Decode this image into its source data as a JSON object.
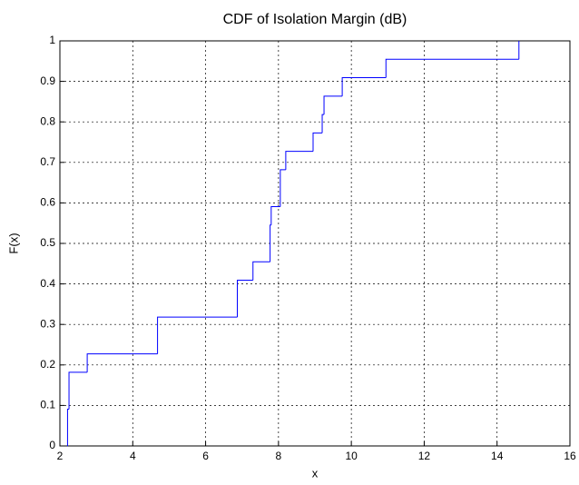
{
  "chart_data": {
    "type": "stairs",
    "title": "CDF of Isolation Margin (dB)",
    "x_label": "x",
    "y_label": "F(x)",
    "x": [
      2.2,
      2.21,
      2.25,
      2.75,
      4.68,
      6.87,
      7.3,
      7.77,
      7.8,
      8.05,
      8.2,
      8.95,
      9.2,
      9.25,
      9.75,
      10.95,
      14.6
    ],
    "values": [
      0,
      0.0909,
      0.1818,
      0.2273,
      0.3182,
      0.4091,
      0.4545,
      0.5455,
      0.5909,
      0.6818,
      0.7273,
      0.7727,
      0.8182,
      0.8636,
      0.9091,
      0.9545,
      1
    ],
    "color": "#0000ff",
    "xlim": [
      2,
      16
    ],
    "xticks": [
      2,
      4,
      6,
      8,
      10,
      12,
      14,
      16
    ],
    "ylim": [
      0,
      1
    ],
    "yticks": [
      0,
      0.1,
      0.2,
      0.3,
      0.4,
      0.5,
      0.6,
      0.7,
      0.8,
      0.9,
      1
    ],
    "grid": true
  }
}
